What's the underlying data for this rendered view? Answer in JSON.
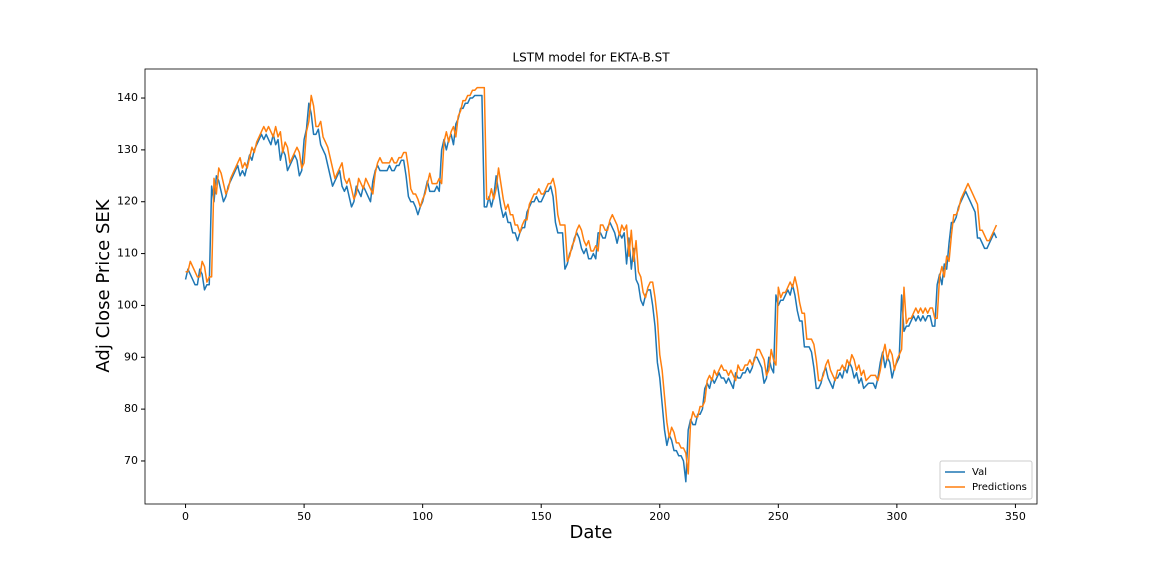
{
  "chart_data": {
    "type": "line",
    "title": "LSTM model for EKTA-B.ST",
    "xlabel": "Date",
    "ylabel": "Adj Close Price SEK",
    "xlim": [
      -17.1,
      359.1
    ],
    "ylim": [
      61.7,
      145.6
    ],
    "xticks": [
      0,
      50,
      100,
      150,
      200,
      250,
      300,
      350
    ],
    "yticks": [
      70,
      80,
      90,
      100,
      110,
      120,
      130,
      140
    ],
    "legend": "lower right",
    "x": [
      0,
      1,
      2,
      3,
      4,
      5,
      6,
      7,
      8,
      9,
      10,
      11,
      12,
      13,
      14,
      15,
      16,
      17,
      18,
      19,
      20,
      21,
      22,
      23,
      24,
      25,
      26,
      27,
      28,
      29,
      30,
      31,
      32,
      33,
      34,
      35,
      36,
      37,
      38,
      39,
      40,
      41,
      42,
      43,
      44,
      45,
      46,
      47,
      48,
      49,
      50,
      51,
      52,
      53,
      54,
      55,
      56,
      57,
      58,
      59,
      60,
      61,
      62,
      63,
      64,
      65,
      66,
      67,
      68,
      69,
      70,
      71,
      72,
      73,
      74,
      75,
      76,
      77,
      78,
      79,
      80,
      81,
      82,
      83,
      84,
      85,
      86,
      87,
      88,
      89,
      90,
      91,
      92,
      93,
      94,
      95,
      96,
      97,
      98,
      99,
      100,
      101,
      102,
      103,
      104,
      105,
      106,
      107,
      108,
      109,
      110,
      111,
      112,
      113,
      114,
      115,
      116,
      117,
      118,
      119,
      120,
      121,
      122,
      123,
      124,
      125,
      126,
      127,
      128,
      129,
      130,
      131,
      132,
      133,
      134,
      135,
      136,
      137,
      138,
      139,
      140,
      141,
      142,
      143,
      144,
      145,
      146,
      147,
      148,
      149,
      150,
      151,
      152,
      153,
      154,
      155,
      156,
      157,
      158,
      159,
      160,
      161,
      162,
      163,
      164,
      165,
      166,
      167,
      168,
      169,
      170,
      171,
      172,
      173,
      174,
      175,
      176,
      177,
      178,
      179,
      180,
      181,
      182,
      183,
      184,
      185,
      186,
      187,
      188,
      189,
      190,
      191,
      192,
      193,
      194,
      195,
      196,
      197,
      198,
      199,
      200,
      201,
      202,
      203,
      204,
      205,
      206,
      207,
      208,
      209,
      210,
      211,
      212,
      213,
      214,
      215,
      216,
      217,
      218,
      219,
      220,
      221,
      222,
      223,
      224,
      225,
      226,
      227,
      228,
      229,
      230,
      231,
      232,
      233,
      234,
      235,
      236,
      237,
      238,
      239,
      240,
      241,
      242,
      243,
      244,
      245,
      246,
      247,
      248,
      249,
      250,
      251,
      252,
      253,
      254,
      255,
      256,
      257,
      258,
      259,
      260,
      261,
      262,
      263,
      264,
      265,
      266,
      267,
      268,
      269,
      270,
      271,
      272,
      273,
      274,
      275,
      276,
      277,
      278,
      279,
      280,
      281,
      282,
      283,
      284,
      285,
      286,
      287,
      288,
      289,
      290,
      291,
      292,
      293,
      294,
      295,
      296,
      297,
      298,
      299,
      300,
      301,
      302,
      303,
      304,
      305,
      306,
      307,
      308,
      309,
      310,
      311,
      312,
      313,
      314,
      315,
      316,
      317,
      318,
      319,
      320,
      321,
      322,
      323,
      324,
      325,
      326,
      327,
      328,
      329,
      330,
      331,
      332,
      333,
      334,
      335,
      336,
      337,
      338,
      339,
      340,
      341,
      342
    ],
    "series": [
      {
        "name": "Val",
        "color": "#1f77b4",
        "values": [
          105,
          107,
          106,
          105,
          104,
          104,
          107,
          106,
          103,
          104,
          104,
          123,
          120,
          125,
          124,
          122,
          120,
          121,
          123,
          124,
          125,
          126,
          127,
          125,
          126,
          125,
          127,
          129,
          128,
          130,
          131,
          132,
          133,
          132,
          133,
          132,
          131,
          133,
          131,
          132,
          128,
          130,
          129,
          126,
          127,
          128,
          129,
          128,
          125,
          126,
          132,
          134,
          139,
          137,
          133,
          133,
          134,
          131,
          130,
          129,
          127,
          125,
          123,
          124,
          125,
          126,
          123,
          122,
          123,
          121,
          119,
          120,
          123,
          122,
          121,
          123,
          122,
          121,
          120,
          124,
          126,
          127,
          126,
          126,
          126,
          126,
          127,
          126,
          126,
          127,
          127,
          128,
          128,
          125,
          121,
          120,
          120,
          119,
          117.5,
          119,
          120,
          122,
          124,
          122,
          122,
          122,
          123,
          122,
          130,
          132,
          130,
          132,
          133,
          131,
          135,
          136,
          138,
          138,
          139,
          139,
          140,
          140,
          140.5,
          140.5,
          140.5,
          140.5,
          119,
          119,
          121,
          119,
          121,
          125,
          122,
          119,
          117,
          118,
          116,
          116,
          114,
          114,
          112.5,
          114,
          115,
          115,
          118,
          119,
          120,
          120,
          121,
          120,
          120,
          121,
          122,
          122,
          123,
          121,
          116,
          114,
          114,
          114,
          107,
          108,
          110,
          111,
          113,
          114,
          113,
          111,
          110,
          111,
          109,
          109,
          110,
          109,
          114,
          114,
          113,
          113,
          115,
          116,
          115,
          114,
          112,
          114,
          113,
          114,
          108,
          113,
          107,
          111,
          105,
          104,
          101,
          100,
          102,
          103,
          103,
          100,
          96,
          89,
          86,
          81,
          76,
          73,
          75,
          74,
          72,
          72,
          71,
          71,
          70,
          66,
          76,
          78,
          77,
          77,
          79,
          79,
          80,
          84,
          85,
          84,
          86,
          85,
          86,
          87,
          86,
          86,
          85,
          86,
          85,
          84,
          87,
          86,
          86,
          87,
          87,
          88,
          87,
          88,
          90,
          90,
          89,
          88,
          85,
          86,
          90,
          88,
          87,
          102,
          100,
          101,
          101,
          102,
          103,
          102,
          104,
          102,
          99,
          97,
          97,
          92,
          92,
          92,
          91,
          88,
          84,
          84,
          85,
          87,
          88,
          86,
          85,
          84,
          86,
          86,
          87,
          86,
          88,
          87,
          89,
          88,
          86,
          87,
          85,
          86,
          84,
          84.5,
          85,
          85,
          85,
          84,
          86,
          89,
          91,
          88,
          90,
          89,
          86,
          88,
          89,
          90,
          102,
          95,
          96,
          96,
          97,
          98,
          97,
          98,
          97,
          98,
          97,
          98,
          98,
          96,
          96,
          104,
          106,
          104,
          108,
          107,
          112,
          116,
          116,
          117,
          119,
          120,
          121,
          122,
          121,
          120,
          119,
          118,
          113,
          113,
          112,
          111,
          111,
          112,
          113,
          114,
          113
        ]
      },
      {
        "name": "Predictions",
        "color": "#ff7f0e",
        "values": [
          106.5,
          106.5,
          108.5,
          107.5,
          106.5,
          105.5,
          105.5,
          108.5,
          107.5,
          104.5,
          105.5,
          105.5,
          124.5,
          121.5,
          126.5,
          125.5,
          123.5,
          121.5,
          122.5,
          124.5,
          125.5,
          126.5,
          127.5,
          128.5,
          126.5,
          127.5,
          126.5,
          128.5,
          130.5,
          129.5,
          131.5,
          132.5,
          133.5,
          134.5,
          133.5,
          134.5,
          133.5,
          132.5,
          134.5,
          132.5,
          133.5,
          129.5,
          131.5,
          130.5,
          127.5,
          128.5,
          129.5,
          130.5,
          129.5,
          126.5,
          127.5,
          133.5,
          135.5,
          140.5,
          138.5,
          134.5,
          134.5,
          135.5,
          132.5,
          131.5,
          130.5,
          128.5,
          126.5,
          124.5,
          125.5,
          126.5,
          127.5,
          124.5,
          123.5,
          124.5,
          122.5,
          120.5,
          121.5,
          124.5,
          123.5,
          122.5,
          124.5,
          123.5,
          122.5,
          121.5,
          125.5,
          127.5,
          128.5,
          127.5,
          127.5,
          127.5,
          127.5,
          128.5,
          127.5,
          127.5,
          128.5,
          128.5,
          129.5,
          129.5,
          126.5,
          122.5,
          121.5,
          121.5,
          120.5,
          119,
          120.5,
          121.5,
          123.5,
          125.5,
          123.5,
          123.5,
          123.5,
          124.5,
          123.5,
          131.5,
          133.5,
          131.5,
          133.5,
          134.5,
          132.5,
          136.5,
          137.5,
          139.5,
          139.5,
          140.5,
          140.5,
          141.5,
          141.5,
          142,
          142,
          142,
          142,
          120.5,
          120.5,
          122.5,
          120.5,
          122.5,
          126.5,
          123.5,
          120.5,
          118.5,
          119.5,
          117.5,
          117.5,
          115.5,
          115.5,
          114,
          115.5,
          116.5,
          116.5,
          119.5,
          120.5,
          121.5,
          121.5,
          122.5,
          121.5,
          121.5,
          122.5,
          123.5,
          123.5,
          124.5,
          122.5,
          117.5,
          115.5,
          115.5,
          115.5,
          108.5,
          109.5,
          111.5,
          112.5,
          114.5,
          115.5,
          114.5,
          112.5,
          111.5,
          112.5,
          110.5,
          110.5,
          111.5,
          110.5,
          115.5,
          115.5,
          114.5,
          114.5,
          116.5,
          117.5,
          116.5,
          115.5,
          113.5,
          115.5,
          114.5,
          115.5,
          109.5,
          114.5,
          108.5,
          112.5,
          106.5,
          105.5,
          102.5,
          101.5,
          103.5,
          104.5,
          104.5,
          101.5,
          97.5,
          90.5,
          87.5,
          82.5,
          77.5,
          74.5,
          76.5,
          75.5,
          73.5,
          73.5,
          72.5,
          72.5,
          71.5,
          67.5,
          77.5,
          79.5,
          78.5,
          78.5,
          80.5,
          80.5,
          81.5,
          85.5,
          86.5,
          85.5,
          87.5,
          86.5,
          87.5,
          88.5,
          87.5,
          87.5,
          86.5,
          87.5,
          86.5,
          85.5,
          88.5,
          87.5,
          87.5,
          88.5,
          88.5,
          89.5,
          88.5,
          89.5,
          91.5,
          91.5,
          90.5,
          89.5,
          86.5,
          87.5,
          91.5,
          89.5,
          88.5,
          103.5,
          101.5,
          102.5,
          102.5,
          103.5,
          104.5,
          103.5,
          105.5,
          103.5,
          100.5,
          98.5,
          98.5,
          93.5,
          93.5,
          93.5,
          92.5,
          89.5,
          85.5,
          85.5,
          86.5,
          88.5,
          89.5,
          87.5,
          86.5,
          85.5,
          87.5,
          87.5,
          88.5,
          87.5,
          89.5,
          88.5,
          90.5,
          89.5,
          87.5,
          88.5,
          86.5,
          87.5,
          85.5,
          86,
          86.5,
          86.5,
          86.5,
          85.5,
          87.5,
          90.5,
          92.5,
          89.5,
          91.5,
          90.5,
          87.5,
          89.5,
          90.5,
          91.5,
          103.5,
          96.5,
          97.5,
          97.5,
          98.5,
          99.5,
          98.5,
          99.5,
          98.5,
          99.5,
          98.5,
          99.5,
          99.5,
          97.5,
          97.5,
          105.5,
          107.5,
          105.5,
          109.5,
          108.5,
          113.5,
          117.5,
          117.5,
          118.5,
          120.5,
          121.5,
          122.5,
          123.5,
          122.5,
          121.5,
          120.5,
          119.5,
          114.5,
          114.5,
          113.5,
          112.5,
          112.5,
          113.5,
          114.5,
          115.5
        ]
      }
    ]
  }
}
